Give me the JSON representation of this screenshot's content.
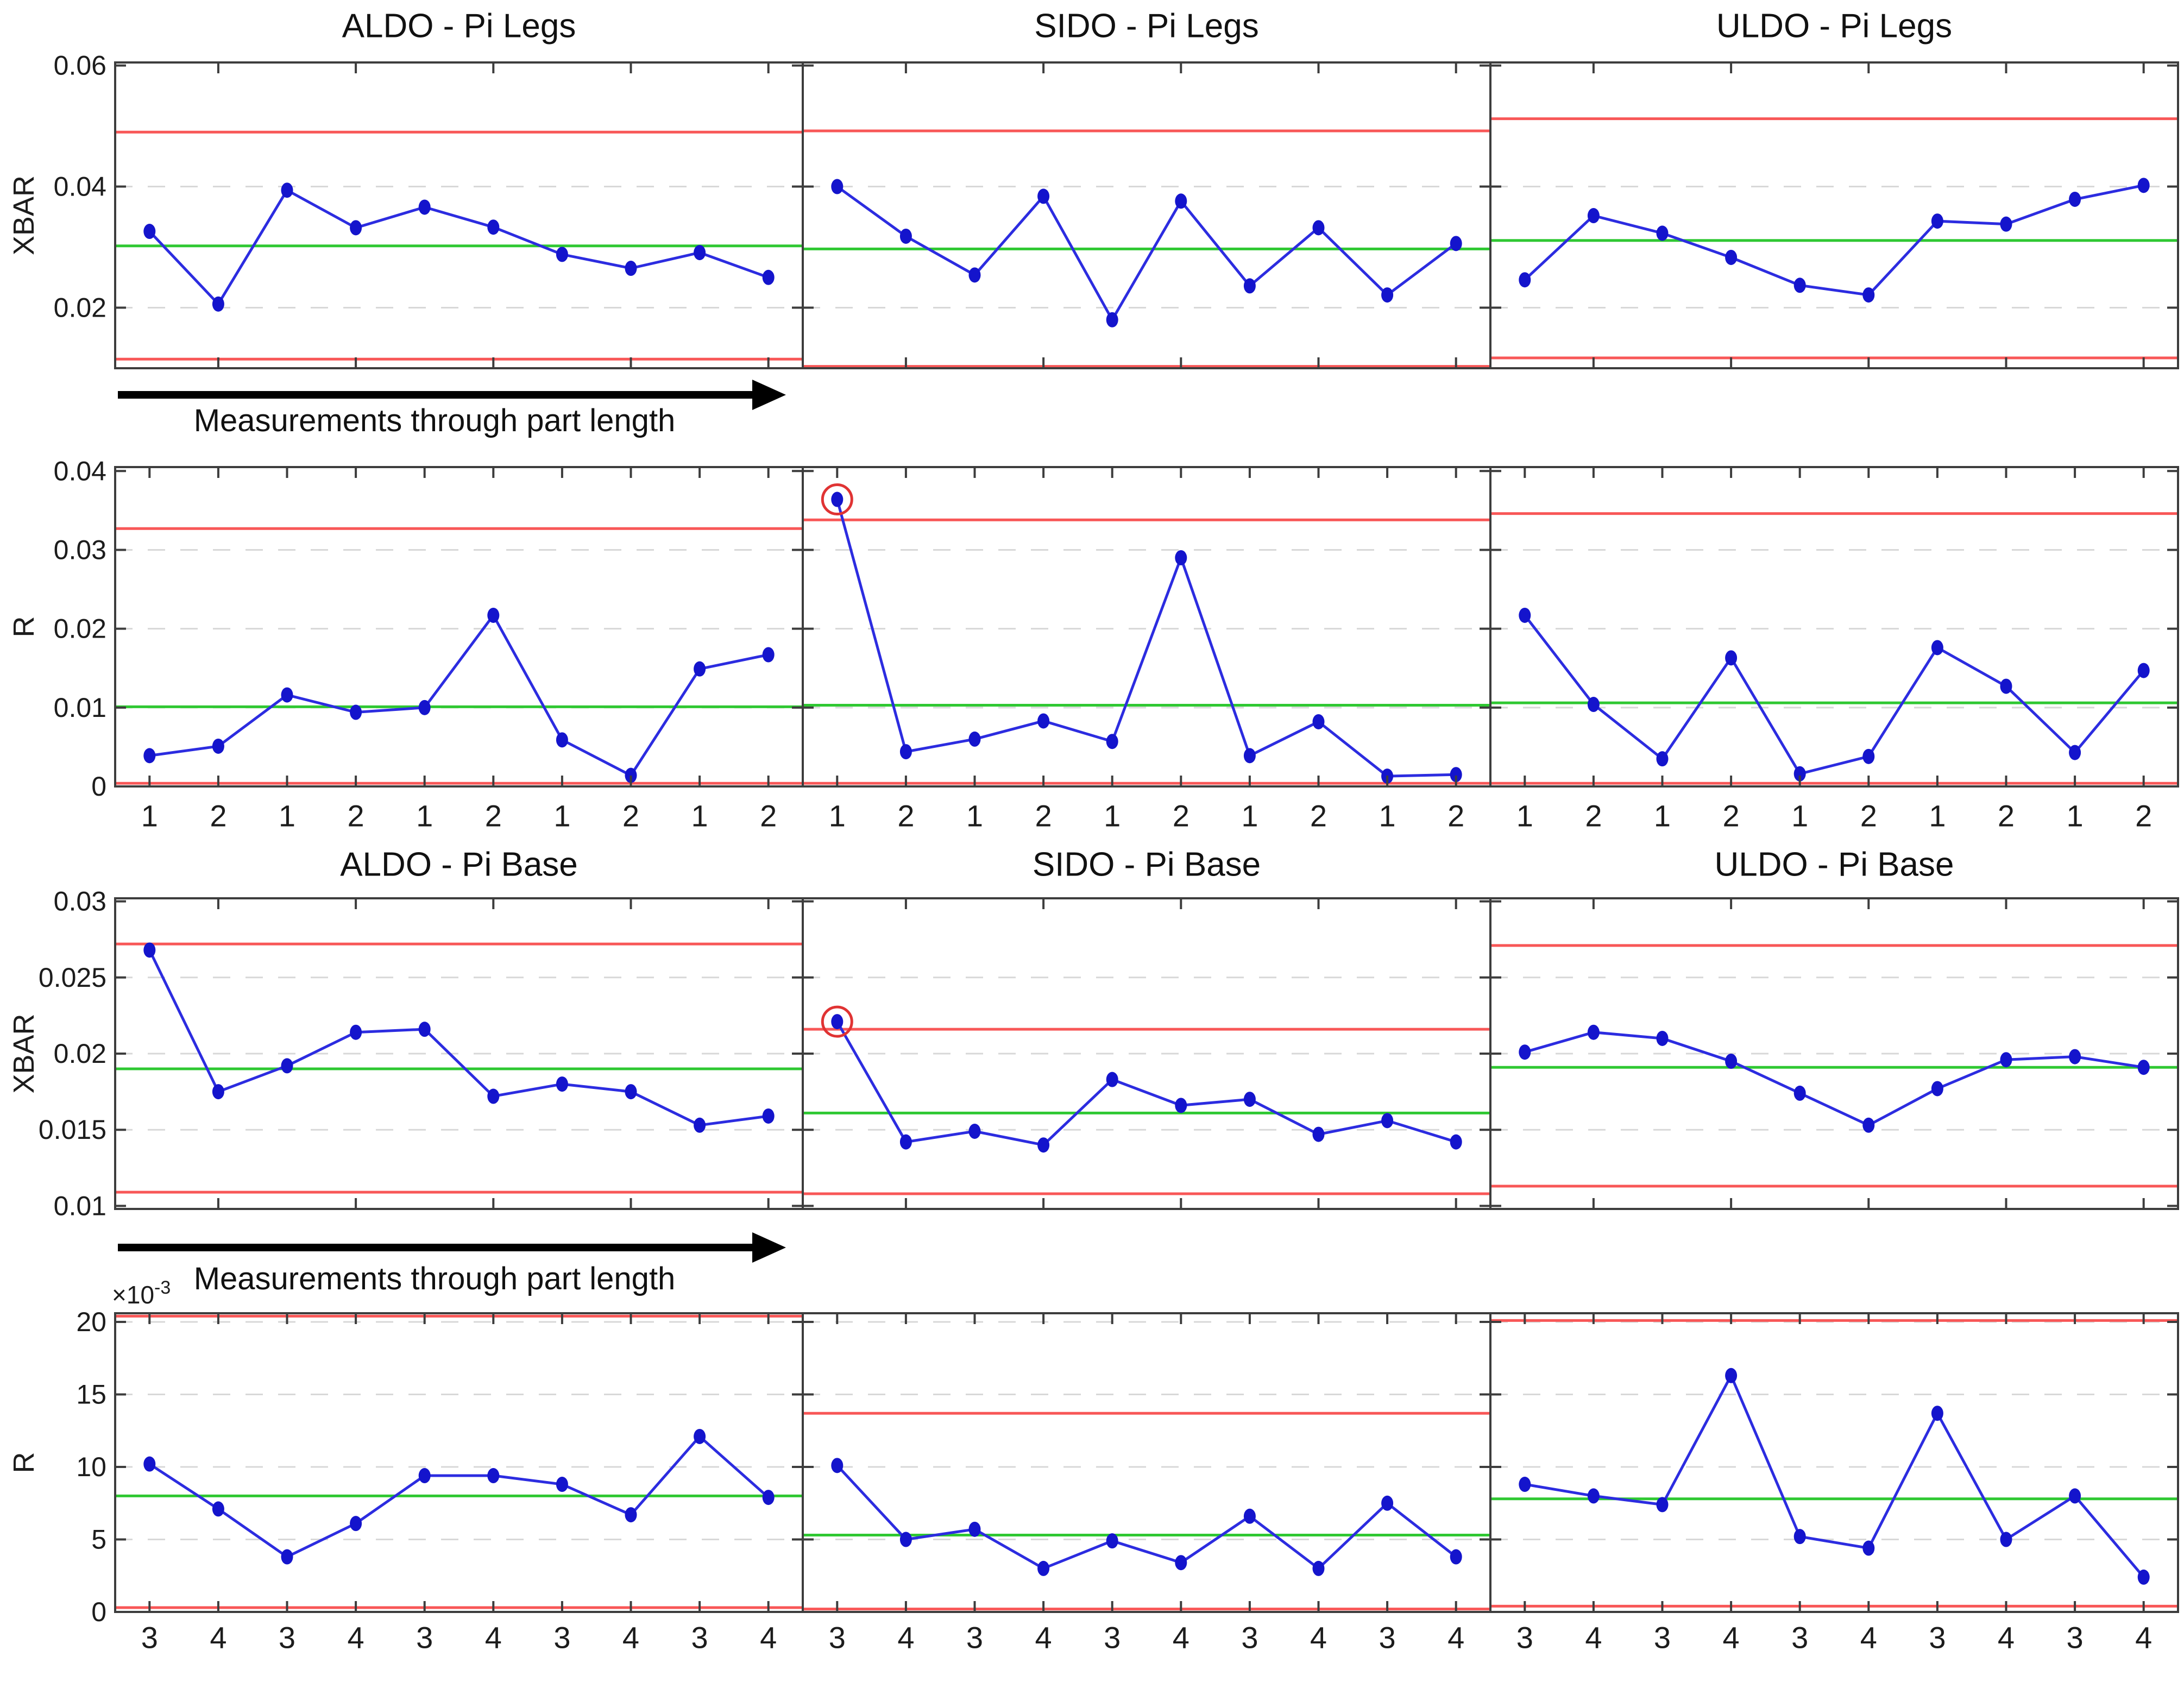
{
  "figure": {
    "arrow_label": "Measurements through part length",
    "exponent_label_base": "×10",
    "exponent_label_power": "-3",
    "colors": {
      "data_line": "#2c2ce0",
      "marker_fill": "#1414cc",
      "limit_line": "#f85757",
      "center_line": "#2fc832",
      "gridline": "#d8d8d8",
      "axis": "#3d3d3d",
      "highlight_ring": "#e03333",
      "arrow": "#000000",
      "text": "#1c1c1c"
    }
  },
  "chart_data": [
    {
      "id": "aldo-pi-legs-xbar",
      "type": "line",
      "row": 0,
      "col": 0,
      "title": "ALDO - Pi Legs",
      "ylabel": "XBAR",
      "ylim": [
        0.01,
        0.0605
      ],
      "yticks": [
        0.02,
        0.04,
        0.06
      ],
      "ytick_labels": [
        "0.02",
        "0.04",
        "0.06"
      ],
      "gridlines": [
        0.02,
        0.04
      ],
      "xlim": [
        0.5,
        10.5
      ],
      "x": [
        1,
        2,
        3,
        4,
        5,
        6,
        7,
        8,
        9,
        10
      ],
      "xticks": [
        2,
        4,
        6,
        8,
        10
      ],
      "x_labels": null,
      "values": [
        0.0326,
        0.0206,
        0.0394,
        0.0332,
        0.0366,
        0.0333,
        0.0288,
        0.0265,
        0.0291,
        0.025
      ],
      "ucl": 0.049,
      "cl": 0.0302,
      "lcl": 0.0115,
      "highlight": []
    },
    {
      "id": "sido-pi-legs-xbar",
      "type": "line",
      "row": 0,
      "col": 1,
      "title": "SIDO - Pi Legs",
      "ylabel": null,
      "ylim": [
        0.01,
        0.0605
      ],
      "yticks": [
        0.02,
        0.04,
        0.06
      ],
      "ytick_labels": null,
      "gridlines": [
        0.02,
        0.04
      ],
      "xlim": [
        0.5,
        10.5
      ],
      "x": [
        1,
        2,
        3,
        4,
        5,
        6,
        7,
        8,
        9,
        10
      ],
      "xticks": [
        2,
        4,
        6,
        8,
        10
      ],
      "x_labels": null,
      "values": [
        0.04,
        0.0318,
        0.0254,
        0.0384,
        0.018,
        0.0376,
        0.0236,
        0.0332,
        0.0221,
        0.0306
      ],
      "ucl": 0.0492,
      "cl": 0.0297,
      "lcl": 0.0103,
      "highlight": []
    },
    {
      "id": "uldo-pi-legs-xbar",
      "type": "line",
      "row": 0,
      "col": 2,
      "title": "ULDO - Pi Legs",
      "ylabel": null,
      "ylim": [
        0.01,
        0.0605
      ],
      "yticks": [
        0.02,
        0.04,
        0.06
      ],
      "ytick_labels": null,
      "gridlines": [
        0.02,
        0.04
      ],
      "xlim": [
        0.5,
        10.5
      ],
      "x": [
        1,
        2,
        3,
        4,
        5,
        6,
        7,
        8,
        9,
        10
      ],
      "xticks": [
        2,
        4,
        6,
        8,
        10
      ],
      "x_labels": null,
      "values": [
        0.0246,
        0.0352,
        0.0323,
        0.0283,
        0.0237,
        0.0221,
        0.0343,
        0.0338,
        0.0379,
        0.0402
      ],
      "ucl": 0.0512,
      "cl": 0.0311,
      "lcl": 0.0117,
      "highlight": []
    },
    {
      "id": "aldo-pi-legs-r",
      "type": "line",
      "row": 1,
      "col": 0,
      "title": null,
      "ylabel": "R",
      "ylim": [
        0,
        0.0405
      ],
      "yticks": [
        0,
        0.01,
        0.02,
        0.03,
        0.04
      ],
      "ytick_labels": [
        "0",
        "0.01",
        "0.02",
        "0.03",
        "0.04"
      ],
      "gridlines": [
        0.01,
        0.02,
        0.03
      ],
      "xlim": [
        0.5,
        10.5
      ],
      "x": [
        1,
        2,
        3,
        4,
        5,
        6,
        7,
        8,
        9,
        10
      ],
      "xticks": [
        1,
        2,
        3,
        4,
        5,
        6,
        7,
        8,
        9,
        10
      ],
      "x_labels": [
        "1",
        "2",
        "1",
        "2",
        "1",
        "2",
        "1",
        "2",
        "1",
        "2"
      ],
      "values": [
        0.0039,
        0.0051,
        0.0116,
        0.0094,
        0.01,
        0.0217,
        0.0059,
        0.0014,
        0.0149,
        0.0167
      ],
      "ucl": 0.0327,
      "cl": 0.0101,
      "lcl": 0.0004,
      "highlight": []
    },
    {
      "id": "sido-pi-legs-r",
      "type": "line",
      "row": 1,
      "col": 1,
      "title": null,
      "ylabel": null,
      "ylim": [
        0,
        0.0405
      ],
      "yticks": [
        0,
        0.01,
        0.02,
        0.03,
        0.04
      ],
      "ytick_labels": null,
      "gridlines": [
        0.01,
        0.02,
        0.03
      ],
      "xlim": [
        0.5,
        10.5
      ],
      "x": [
        1,
        2,
        3,
        4,
        5,
        6,
        7,
        8,
        9,
        10
      ],
      "xticks": [
        1,
        2,
        3,
        4,
        5,
        6,
        7,
        8,
        9,
        10
      ],
      "x_labels": [
        "1",
        "2",
        "1",
        "2",
        "1",
        "2",
        "1",
        "2",
        "1",
        "2"
      ],
      "values": [
        0.0364,
        0.0044,
        0.006,
        0.0083,
        0.0057,
        0.029,
        0.0039,
        0.0082,
        0.0013,
        0.0015
      ],
      "ucl": 0.0338,
      "cl": 0.0103,
      "lcl": 0.0004,
      "highlight": [
        0
      ]
    },
    {
      "id": "uldo-pi-legs-r",
      "type": "line",
      "row": 1,
      "col": 2,
      "title": null,
      "ylabel": null,
      "ylim": [
        0,
        0.0405
      ],
      "yticks": [
        0,
        0.01,
        0.02,
        0.03,
        0.04
      ],
      "ytick_labels": null,
      "gridlines": [
        0.01,
        0.02,
        0.03
      ],
      "xlim": [
        0.5,
        10.5
      ],
      "x": [
        1,
        2,
        3,
        4,
        5,
        6,
        7,
        8,
        9,
        10
      ],
      "xticks": [
        1,
        2,
        3,
        4,
        5,
        6,
        7,
        8,
        9,
        10
      ],
      "x_labels": [
        "1",
        "2",
        "1",
        "2",
        "1",
        "2",
        "1",
        "2",
        "1",
        "2"
      ],
      "values": [
        0.0217,
        0.0104,
        0.0035,
        0.0163,
        0.0016,
        0.0038,
        0.0176,
        0.0127,
        0.0043,
        0.0147
      ],
      "ucl": 0.0346,
      "cl": 0.0106,
      "lcl": 0.0004,
      "highlight": []
    },
    {
      "id": "aldo-pi-base-xbar",
      "type": "line",
      "row": 2,
      "col": 0,
      "title": "ALDO - Pi Base",
      "ylabel": "XBAR",
      "ylim": [
        0.0098,
        0.0302
      ],
      "yticks": [
        0.01,
        0.015,
        0.02,
        0.025,
        0.03
      ],
      "ytick_labels": [
        "0.01",
        "0.015",
        "0.02",
        "0.025",
        "0.03"
      ],
      "gridlines": [
        0.015,
        0.02,
        0.025
      ],
      "xlim": [
        0.5,
        10.5
      ],
      "x": [
        1,
        2,
        3,
        4,
        5,
        6,
        7,
        8,
        9,
        10
      ],
      "xticks": [
        2,
        4,
        6,
        8,
        10
      ],
      "x_labels": null,
      "values": [
        0.0268,
        0.0175,
        0.0192,
        0.0214,
        0.0216,
        0.0172,
        0.018,
        0.0175,
        0.0153,
        0.0159
      ],
      "ucl": 0.0272,
      "cl": 0.019,
      "lcl": 0.0109,
      "highlight": []
    },
    {
      "id": "sido-pi-base-xbar",
      "type": "line",
      "row": 2,
      "col": 1,
      "title": "SIDO - Pi Base",
      "ylabel": null,
      "ylim": [
        0.0098,
        0.0302
      ],
      "yticks": [
        0.01,
        0.015,
        0.02,
        0.025,
        0.03
      ],
      "ytick_labels": null,
      "gridlines": [
        0.015,
        0.02,
        0.025
      ],
      "xlim": [
        0.5,
        10.5
      ],
      "x": [
        1,
        2,
        3,
        4,
        5,
        6,
        7,
        8,
        9,
        10
      ],
      "xticks": [
        2,
        4,
        6,
        8,
        10
      ],
      "x_labels": null,
      "values": [
        0.0221,
        0.0142,
        0.0149,
        0.014,
        0.0183,
        0.0166,
        0.017,
        0.0147,
        0.0156,
        0.0142
      ],
      "ucl": 0.0216,
      "cl": 0.0161,
      "lcl": 0.0108,
      "highlight": [
        0
      ]
    },
    {
      "id": "uldo-pi-base-xbar",
      "type": "line",
      "row": 2,
      "col": 2,
      "title": "ULDO - Pi Base",
      "ylabel": null,
      "ylim": [
        0.0098,
        0.0302
      ],
      "yticks": [
        0.01,
        0.015,
        0.02,
        0.025,
        0.03
      ],
      "ytick_labels": null,
      "gridlines": [
        0.015,
        0.02,
        0.025
      ],
      "xlim": [
        0.5,
        10.5
      ],
      "x": [
        1,
        2,
        3,
        4,
        5,
        6,
        7,
        8,
        9,
        10
      ],
      "xticks": [
        2,
        4,
        6,
        8,
        10
      ],
      "x_labels": null,
      "values": [
        0.0201,
        0.0214,
        0.021,
        0.0195,
        0.0174,
        0.0153,
        0.0177,
        0.0196,
        0.0198,
        0.0191
      ],
      "ucl": 0.0271,
      "cl": 0.0191,
      "lcl": 0.0113,
      "highlight": []
    },
    {
      "id": "aldo-pi-base-r",
      "type": "line",
      "row": 3,
      "col": 0,
      "title": null,
      "ylabel": "R",
      "ylim": [
        0,
        0.0206
      ],
      "yticks": [
        0,
        0.005,
        0.01,
        0.015,
        0.02
      ],
      "ytick_labels": [
        "0",
        "5",
        "10",
        "15",
        "20"
      ],
      "gridlines": [
        0.005,
        0.01,
        0.015,
        0.02
      ],
      "exponent_label": true,
      "xlim": [
        0.5,
        10.5
      ],
      "x": [
        1,
        2,
        3,
        4,
        5,
        6,
        7,
        8,
        9,
        10
      ],
      "xticks": [
        1,
        2,
        3,
        4,
        5,
        6,
        7,
        8,
        9,
        10
      ],
      "x_labels": [
        "3",
        "4",
        "3",
        "4",
        "3",
        "4",
        "3",
        "4",
        "3",
        "4"
      ],
      "values": [
        0.0102,
        0.0071,
        0.0038,
        0.0061,
        0.0094,
        0.0094,
        0.0088,
        0.0067,
        0.0121,
        0.0079
      ],
      "ucl": 0.0204,
      "cl": 0.008,
      "lcl": 0.0003,
      "highlight": []
    },
    {
      "id": "sido-pi-base-r",
      "type": "line",
      "row": 3,
      "col": 1,
      "title": null,
      "ylabel": null,
      "ylim": [
        0,
        0.0206
      ],
      "yticks": [
        0,
        0.005,
        0.01,
        0.015,
        0.02
      ],
      "ytick_labels": null,
      "gridlines": [
        0.005,
        0.01,
        0.015,
        0.02
      ],
      "xlim": [
        0.5,
        10.5
      ],
      "x": [
        1,
        2,
        3,
        4,
        5,
        6,
        7,
        8,
        9,
        10
      ],
      "xticks": [
        1,
        2,
        3,
        4,
        5,
        6,
        7,
        8,
        9,
        10
      ],
      "x_labels": [
        "3",
        "4",
        "3",
        "4",
        "3",
        "4",
        "3",
        "4",
        "3",
        "4"
      ],
      "values": [
        0.0101,
        0.005,
        0.0057,
        0.003,
        0.0049,
        0.0034,
        0.0066,
        0.003,
        0.0075,
        0.0038
      ],
      "ucl": 0.0137,
      "cl": 0.0053,
      "lcl": 0.0002,
      "highlight": []
    },
    {
      "id": "uldo-pi-base-r",
      "type": "line",
      "row": 3,
      "col": 2,
      "title": null,
      "ylabel": null,
      "ylim": [
        0,
        0.0206
      ],
      "yticks": [
        0,
        0.005,
        0.01,
        0.015,
        0.02
      ],
      "ytick_labels": null,
      "gridlines": [
        0.005,
        0.01,
        0.015,
        0.02
      ],
      "xlim": [
        0.5,
        10.5
      ],
      "x": [
        1,
        2,
        3,
        4,
        5,
        6,
        7,
        8,
        9,
        10
      ],
      "xticks": [
        1,
        2,
        3,
        4,
        5,
        6,
        7,
        8,
        9,
        10
      ],
      "x_labels": [
        "3",
        "4",
        "3",
        "4",
        "3",
        "4",
        "3",
        "4",
        "3",
        "4"
      ],
      "values": [
        0.0088,
        0.008,
        0.0074,
        0.0163,
        0.0052,
        0.0044,
        0.0137,
        0.005,
        0.008,
        0.0024
      ],
      "ucl": 0.0201,
      "cl": 0.0078,
      "lcl": 0.0004,
      "highlight": []
    }
  ]
}
